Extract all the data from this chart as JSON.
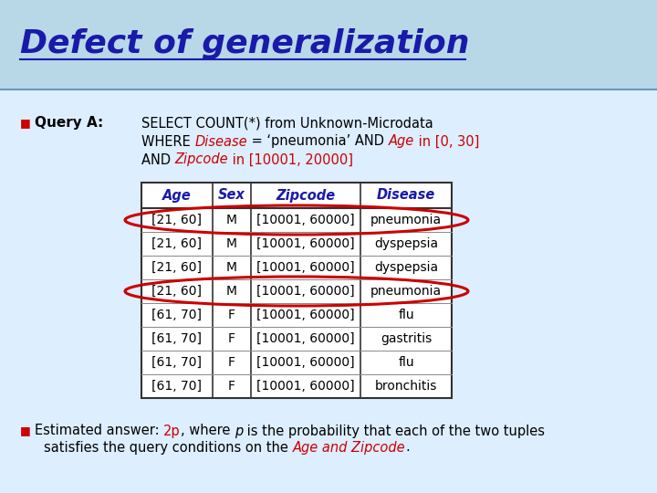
{
  "title": "Defect of generalization",
  "title_color": "#1a1aaa",
  "bg_top": "#b8d8e8",
  "bg_bottom": "#ddeeff",
  "query_label": "Query A:",
  "query_line1": "SELECT COUNT(*) from Unknown-Microdata",
  "table_headers": [
    "Age",
    "Sex",
    "Zipcode",
    "Disease"
  ],
  "table_rows": [
    [
      "[21, 60]",
      "M",
      "[10001, 60000]",
      "pneumonia"
    ],
    [
      "[21, 60]",
      "M",
      "[10001, 60000]",
      "dyspepsia"
    ],
    [
      "[21, 60]",
      "M",
      "[10001, 60000]",
      "dyspepsia"
    ],
    [
      "[21, 60]",
      "M",
      "[10001, 60000]",
      "pneumonia"
    ],
    [
      "[61, 70]",
      "F",
      "[10001, 60000]",
      "flu"
    ],
    [
      "[61, 70]",
      "F",
      "[10001, 60000]",
      "gastritis"
    ],
    [
      "[61, 70]",
      "F",
      "[10001, 60000]",
      "flu"
    ],
    [
      "[61, 70]",
      "F",
      "[10001, 60000]",
      "bronchitis"
    ]
  ],
  "highlighted_rows": [
    0,
    3
  ],
  "ellipse_color": "#cc0000",
  "header_color": "#1a1aaa",
  "red_color": "#cc0000",
  "black_color": "#000000"
}
